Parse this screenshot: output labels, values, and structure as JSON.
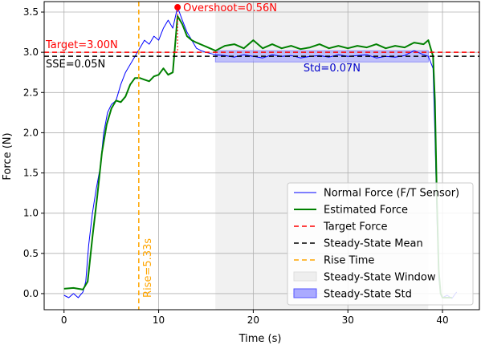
{
  "chart_data": {
    "type": "line",
    "title": "",
    "xlabel": "Time (s)",
    "ylabel": "Force (N)",
    "xlim": [
      -2.1,
      43.9
    ],
    "ylim": [
      -0.2,
      3.63
    ],
    "xticks": [
      0,
      10,
      20,
      30,
      40
    ],
    "yticks": [
      0.0,
      0.5,
      1.0,
      1.5,
      2.0,
      2.5,
      3.0,
      3.5
    ],
    "xtick_labels": [
      "0",
      "10",
      "20",
      "30",
      "40"
    ],
    "ytick_labels": [
      "0.0",
      "0.5",
      "1.0",
      "1.5",
      "2.0",
      "2.5",
      "3.0",
      "3.5"
    ],
    "grid": true,
    "legend_position": "lower right",
    "colors": {
      "normal": "#0000ff",
      "estimated": "#008000",
      "target": "#ff0000",
      "mean": "#000000",
      "rise": "#ffa500",
      "window": "#eeeeee",
      "std_fill": "#aaaaff"
    },
    "target_force": 3.0,
    "steady_state_mean": 2.95,
    "steady_state_window": [
      16.0,
      38.5
    ],
    "steady_state_std": 0.07,
    "rise_time": 7.9,
    "overshoot_point": [
      12.0,
      3.56
    ],
    "series": [
      {
        "name": "Normal Force (F/T Sensor)",
        "x": [
          0,
          0.5,
          1,
          1.5,
          2,
          2.3,
          2.6,
          3,
          3.4,
          3.8,
          4.2,
          4.6,
          5,
          5.5,
          6,
          6.5,
          7,
          7.5,
          8,
          8.5,
          9,
          9.5,
          10,
          10.5,
          11,
          11.5,
          12,
          12.5,
          13,
          13.5,
          14,
          14.5,
          15,
          16,
          17,
          18,
          19,
          20,
          21,
          22,
          23,
          24,
          25,
          26,
          27,
          28,
          29,
          30,
          31,
          32,
          33,
          34,
          35,
          36,
          37,
          38,
          38.5,
          39,
          39.2,
          39.4,
          39.6,
          39.8,
          40,
          40.5,
          41,
          41.5
        ],
        "y": [
          -0.02,
          -0.05,
          0.0,
          -0.05,
          0.02,
          0.15,
          0.6,
          1.0,
          1.3,
          1.55,
          2.0,
          2.25,
          2.35,
          2.4,
          2.6,
          2.75,
          2.85,
          2.95,
          3.05,
          3.15,
          3.1,
          3.2,
          3.15,
          3.3,
          3.4,
          3.3,
          3.56,
          3.4,
          3.25,
          3.15,
          3.05,
          3.02,
          3.0,
          2.97,
          2.96,
          2.94,
          2.97,
          2.95,
          2.93,
          2.97,
          2.95,
          2.96,
          2.93,
          2.95,
          2.96,
          2.94,
          2.97,
          2.95,
          2.96,
          2.97,
          2.93,
          2.95,
          2.94,
          2.96,
          3.02,
          2.97,
          2.95,
          2.8,
          2.0,
          1.0,
          0.2,
          0.0,
          -0.05,
          -0.02,
          -0.06,
          0.02
        ]
      },
      {
        "name": "Estimated Force",
        "x": [
          0,
          1,
          1.5,
          2,
          2.5,
          3,
          3.5,
          4,
          4.5,
          5,
          5.5,
          6,
          6.5,
          7,
          7.5,
          8,
          8.5,
          9,
          9.5,
          10,
          10.5,
          11,
          11.5,
          12,
          12.5,
          13,
          13.5,
          14,
          15,
          16,
          17,
          18,
          19,
          20,
          21,
          22,
          23,
          24,
          25,
          26,
          27,
          28,
          29,
          30,
          31,
          32,
          33,
          34,
          35,
          36,
          37,
          38,
          38.5,
          39,
          39.2,
          39.4,
          39.6,
          39.8,
          40,
          40.5,
          41
        ],
        "y": [
          0.06,
          0.07,
          0.06,
          0.05,
          0.15,
          0.7,
          1.2,
          1.75,
          2.1,
          2.3,
          2.4,
          2.38,
          2.45,
          2.6,
          2.68,
          2.68,
          2.66,
          2.64,
          2.7,
          2.72,
          2.8,
          2.72,
          2.75,
          3.45,
          3.35,
          3.2,
          3.15,
          3.12,
          3.07,
          3.02,
          3.08,
          3.1,
          3.05,
          3.15,
          3.05,
          3.1,
          3.05,
          3.08,
          3.04,
          3.06,
          3.1,
          3.05,
          3.08,
          3.05,
          3.08,
          3.06,
          3.1,
          3.05,
          3.08,
          3.06,
          3.12,
          3.1,
          3.15,
          2.95,
          2.4,
          1.2,
          0.3,
          0.0,
          -0.05,
          -0.05,
          -0.05
        ]
      }
    ],
    "legend": [
      {
        "label": "Normal Force (F/T Sensor)",
        "kind": "line",
        "color": "#0000ff",
        "dash": "",
        "width": 1
      },
      {
        "label": "Estimated Force",
        "kind": "line",
        "color": "#008000",
        "dash": "",
        "width": 2
      },
      {
        "label": "Target Force",
        "kind": "line",
        "color": "#ff0000",
        "dash": "6,4",
        "width": 1.5
      },
      {
        "label": "Steady-State Mean",
        "kind": "line",
        "color": "#000000",
        "dash": "6,4",
        "width": 1.5
      },
      {
        "label": "Rise Time",
        "kind": "line",
        "color": "#ffa500",
        "dash": "6,4",
        "width": 1.5
      },
      {
        "label": "Steady-State Window",
        "kind": "patch",
        "color": "#eeeeee",
        "edge": "#dddddd"
      },
      {
        "label": "Steady-State Std",
        "kind": "patch",
        "color": "#aaaaff",
        "edge": "#5555ff"
      }
    ],
    "annotations": {
      "overshoot": "Overshoot=0.56N",
      "target": "Target=3.00N",
      "sse": "SSE=0.05N",
      "std": "Std=0.07N",
      "rise": "Rise=5.33s"
    }
  }
}
